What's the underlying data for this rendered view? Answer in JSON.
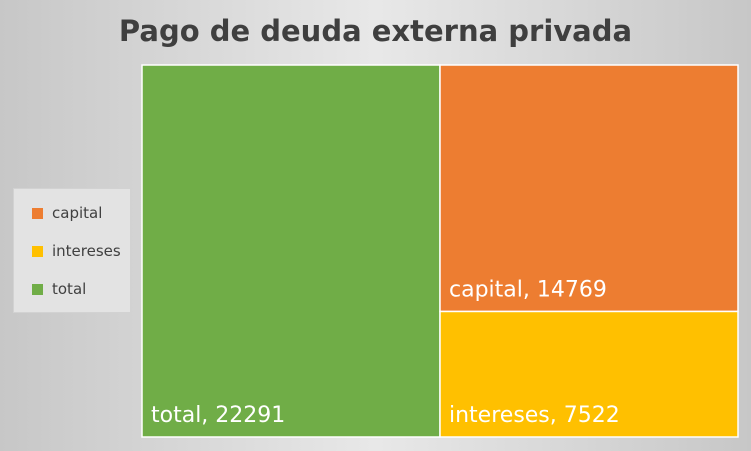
{
  "chart_data": {
    "type": "treemap",
    "title": "Pago de deuda externa privada",
    "series": [
      {
        "name": "total",
        "value": 22291,
        "color": "#70ad47",
        "label": "total, 22291"
      },
      {
        "name": "capital",
        "value": 14769,
        "color": "#ed7d31",
        "label": "capital, 14769"
      },
      {
        "name": "intereses",
        "value": 7522,
        "color": "#ffc000",
        "label": "intereses, 7522"
      }
    ],
    "legend": {
      "position": "left",
      "items": [
        {
          "label": "capital",
          "color": "#ed7d31"
        },
        {
          "label": "intereses",
          "color": "#ffc000"
        },
        {
          "label": "total",
          "color": "#70ad47"
        }
      ]
    }
  }
}
